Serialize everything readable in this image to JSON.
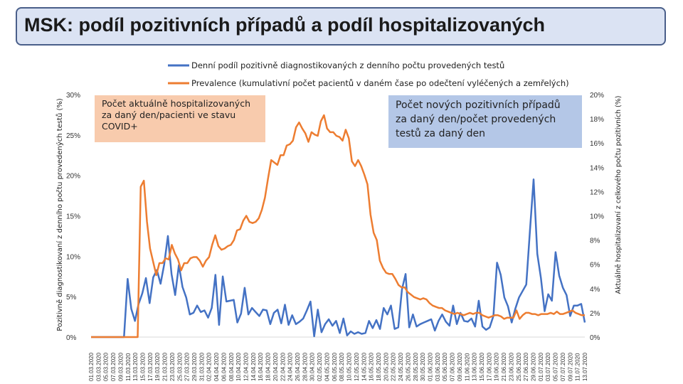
{
  "title": "MSK: podíl pozitivních případů a podíl hospitalizovaných",
  "notes": {
    "hospitalized": "Počet aktuálně hospitalizovaných za daný den/pacienti ve stavu COVID+",
    "positive": "Počet nových pozitivních případů za daný den/počet provedených testů za daný den"
  },
  "colors": {
    "series_positive": "#4472c4",
    "series_prevalence": "#ed7d31",
    "title_bg": "#dbe3f3",
    "title_border": "#4a5f8a",
    "note_hosp_bg": "#f8cbad",
    "note_pos_bg": "#b4c7e7"
  },
  "chart_data": {
    "type": "line",
    "x_tick_labels": [
      "01.03.2020",
      "03.03.2020",
      "05.03.2020",
      "07.03.2020",
      "09.03.2020",
      "11.03.2020",
      "13.03.2020",
      "15.03.2020",
      "17.03.2020",
      "19.03.2020",
      "21.03.2020",
      "23.03.2020",
      "25.03.2020",
      "27.03.2020",
      "29.03.2020",
      "31.03.2020",
      "02.04.2020",
      "04.04.2020",
      "06.04.2020",
      "08.04.2020",
      "10.04.2020",
      "12.04.2020",
      "14.04.2020",
      "16.04.2020",
      "18.04.2020",
      "20.04.2020",
      "22.04.2020",
      "24.04.2020",
      "26.04.2020",
      "28.04.2020",
      "30.04.2020",
      "02.05.2020",
      "04.05.2020",
      "06.05.2020",
      "08.05.2020",
      "10.05.2020",
      "12.05.2020",
      "14.05.2020",
      "16.05.2020",
      "18.05.2020",
      "20.05.2020",
      "22.05.2020",
      "24.05.2020",
      "26.05.2020",
      "28.05.2020",
      "30.05.2020",
      "01.06.2020",
      "03.06.2020",
      "05.06.2020",
      "07.06.2020",
      "09.06.2020",
      "11.06.2020",
      "13.06.2020",
      "15.06.2020",
      "17.06.2020",
      "19.06.2020",
      "21.06.2020",
      "23.06.2020",
      "25.06.2020",
      "27.06.2020",
      "29.06.2020",
      "01.07.2020",
      "03.07.2020",
      "05.07.2020",
      "07.07.2020",
      "09.07.2020",
      "11.07.2020",
      "13.07.2020"
    ],
    "y_left": {
      "label": "Pozitivně diagnostikovaní z denního počtu provedených testů (%)",
      "ticks": [
        "0%",
        "5%",
        "10%",
        "15%",
        "20%",
        "25%",
        "30%"
      ],
      "range": [
        0,
        30
      ]
    },
    "y_right": {
      "label": "Aktuálně hospitalizovaní z celkového počtu pozitivních (%)",
      "ticks": [
        "0%",
        "2%",
        "4%",
        "6%",
        "8%",
        "10%",
        "12%",
        "14%",
        "16%",
        "18%",
        "20%"
      ],
      "range": [
        0,
        20
      ]
    },
    "series": [
      {
        "name": "Denní podíl pozitivně diagnostikovaných z denního počtu provedených testů",
        "axis": "left",
        "values": [
          0,
          0,
          0,
          0,
          0,
          0,
          0,
          0,
          0,
          0,
          7.2,
          3.5,
          2,
          4.1,
          5.4,
          7.3,
          4.2,
          7.4,
          8.3,
          6.6,
          9,
          12.5,
          7.8,
          5.2,
          8.9,
          6.2,
          4.9,
          2.8,
          3,
          3.9,
          3.1,
          3.3,
          2.4,
          3.6,
          7.7,
          1.5,
          7.5,
          4.4,
          4.5,
          4.6,
          1.8,
          2.9,
          6.1,
          2.8,
          3.6,
          3.1,
          2.6,
          3.4,
          3.3,
          1.6,
          3,
          3.4,
          1.7,
          4,
          1.5,
          2.7,
          1.6,
          1.9,
          2.3,
          3.3,
          4.4,
          0.1,
          3.4,
          0.6,
          1.6,
          2.2,
          1.4,
          2,
          0.5,
          2.3,
          0.2,
          0.7,
          0.4,
          0.6,
          0.4,
          0.5,
          2,
          1.1,
          2.1,
          1,
          3.6,
          2.8,
          3.9,
          1,
          1.2,
          5.9,
          7.8,
          1.2,
          2.8,
          1.3,
          1.6,
          1.8,
          2,
          2.2,
          0.8,
          2,
          2.8,
          1.9,
          1.4,
          3.9,
          1.6,
          3,
          2,
          1.9,
          2.3,
          1.3,
          4.5,
          1.3,
          0.9,
          1.2,
          2.6,
          9.2,
          7.7,
          4.9,
          3.8,
          1.8,
          3.5,
          4.9,
          5.7,
          6.5,
          13.2,
          19.5,
          10.3,
          7.3,
          3.2,
          5.3,
          4.5,
          10.5,
          7.6,
          6.1,
          5.2,
          2.6,
          3.9,
          3.9,
          4.1,
          1.8
        ]
      },
      {
        "name": "Prevalence (kumulativní počet pacientů v daném čase po odečtení vyléčených a zemřelých)",
        "axis": "right",
        "values": [
          0,
          0,
          0,
          0,
          0,
          0,
          0,
          0,
          0,
          0,
          0,
          0,
          0,
          0,
          0,
          0,
          12.4,
          12.9,
          9.5,
          7.3,
          6.2,
          5.1,
          6.1,
          6.1,
          6.5,
          6.4,
          7.6,
          6.9,
          6.4,
          5.5,
          6.1,
          6.1,
          6.5,
          6.6,
          6.6,
          6.3,
          5.8,
          6.3,
          6.6,
          7.6,
          8.4,
          7.5,
          7.2,
          7.3,
          7.5,
          7.6,
          8,
          8.8,
          8.9,
          9.6,
          10,
          9.5,
          9.4,
          9.5,
          9.8,
          10.5,
          11.5,
          13.1,
          14.6,
          14.4,
          14.2,
          15,
          15,
          15.8,
          15.9,
          16.2,
          17.3,
          17.7,
          17.2,
          16.8,
          16.1,
          16.9,
          16.7,
          16.6,
          17.8,
          18.3,
          17.2,
          16.9,
          16.9,
          16.6,
          16.5,
          16.2,
          17.1,
          16.4,
          14.5,
          14.1,
          14.6,
          14.1,
          13.4,
          12.6,
          10.1,
          8.6,
          8,
          6.3,
          5.7,
          5.3,
          5.2,
          5.2,
          4.8,
          4.3,
          4.1,
          4.1,
          3.7,
          3.5,
          3.3,
          3.2,
          3.1,
          3.2,
          3.1,
          2.8,
          2.6,
          2.5,
          2.4,
          2.4,
          2.2,
          2.1,
          2,
          1.9,
          2,
          1.9,
          1.8,
          1.9,
          2,
          1.9,
          2,
          2,
          1.8,
          1.7,
          1.6,
          1.7,
          1.8,
          1.8,
          1.7,
          1.5,
          1.6,
          1.6,
          1.6,
          2.2,
          1.5,
          1.8,
          2,
          2,
          1.9,
          1.9,
          1.8,
          1.9,
          1.9,
          1.9,
          2,
          1.9,
          2.1,
          1.9,
          1.9,
          2,
          2.1,
          2.2,
          2,
          1.9,
          1.8,
          1.8
        ]
      }
    ],
    "legend_position": "top",
    "grid": false
  }
}
